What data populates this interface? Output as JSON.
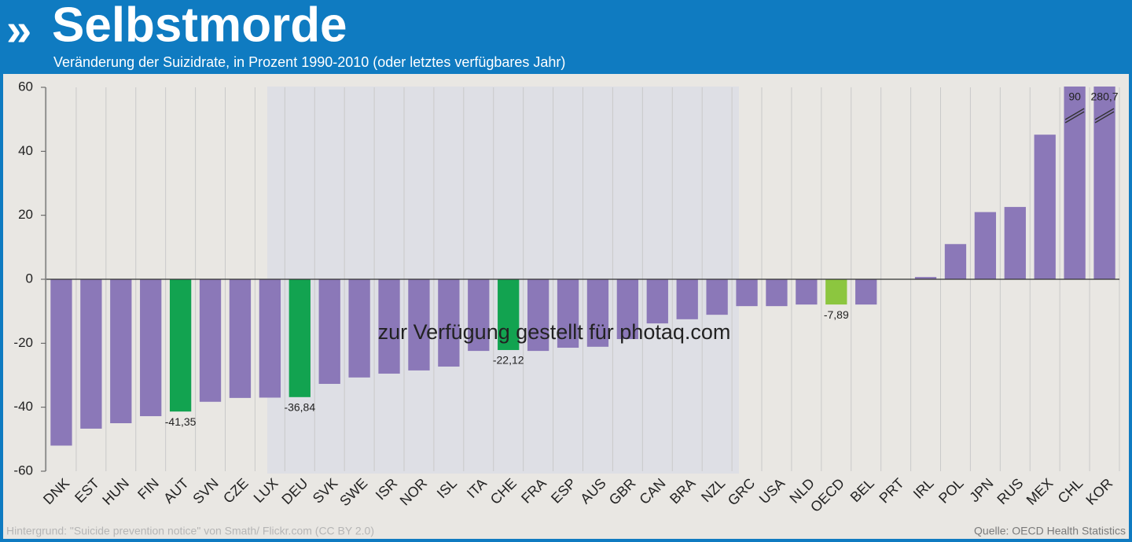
{
  "chart_data": {
    "type": "bar",
    "title": "Selbstmorde",
    "subtitle": "Veränderung der Suizidrate, in Prozent 1990-2010 (oder letztes verfügbares Jahr)",
    "watermark": "zur Verfügung gestellt für photaq.com",
    "footnote_left": "Hintergrund: \"Suicide prevention notice\" von Smath/ Flickr.com (CC BY 2.0)",
    "footnote_right": "Quelle: OECD Health Statistics",
    "categories": [
      "DNK",
      "EST",
      "HUN",
      "FIN",
      "AUT",
      "SVN",
      "CZE",
      "LUX",
      "DEU",
      "SVK",
      "SWE",
      "ISR",
      "NOR",
      "ISL",
      "ITA",
      "CHE",
      "FRA",
      "ESP",
      "AUS",
      "GBR",
      "CAN",
      "BRA",
      "NZL",
      "GRC",
      "USA",
      "NLD",
      "OECD",
      "BEL",
      "PRT",
      "IRL",
      "POL",
      "JPN",
      "RUS",
      "MEX",
      "CHL",
      "KOR"
    ],
    "values": [
      -52,
      -46.7,
      -45,
      -42.8,
      -41.35,
      -38.3,
      -37.1,
      -37,
      -36.84,
      -32.7,
      -30.7,
      -29.5,
      -28.5,
      -27.3,
      -22.4,
      -22.12,
      -22.4,
      -21.4,
      -21.1,
      -18.7,
      -13.8,
      -12.5,
      -11.1,
      -8.4,
      -8.4,
      -7.9,
      -7.89,
      -7.9,
      null,
      0.7,
      11,
      21,
      22.6,
      45.2,
      90,
      280.7
    ],
    "value_labels": [
      null,
      null,
      null,
      null,
      "-41,35",
      null,
      null,
      null,
      "-36,84",
      null,
      null,
      null,
      null,
      null,
      null,
      "-22,12",
      null,
      null,
      null,
      null,
      null,
      null,
      null,
      null,
      null,
      null,
      "-7,89",
      null,
      null,
      null,
      null,
      null,
      null,
      null,
      "90",
      "280,7"
    ],
    "colors": [
      "#8b78b8",
      "#8b78b8",
      "#8b78b8",
      "#8b78b8",
      "#12a350",
      "#8b78b8",
      "#8b78b8",
      "#8b78b8",
      "#12a350",
      "#8b78b8",
      "#8b78b8",
      "#8b78b8",
      "#8b78b8",
      "#8b78b8",
      "#8b78b8",
      "#12a350",
      "#8b78b8",
      "#8b78b8",
      "#8b78b8",
      "#8b78b8",
      "#8b78b8",
      "#8b78b8",
      "#8b78b8",
      "#8b78b8",
      "#8b78b8",
      "#8b78b8",
      "#8cc63f",
      "#8b78b8",
      "#8b78b8",
      "#8b78b8",
      "#8b78b8",
      "#8b78b8",
      "#8b78b8",
      "#8b78b8",
      "#8b78b8",
      "#8b78b8"
    ],
    "ylim": [
      -60,
      60
    ],
    "yticks": [
      -60,
      -40,
      -20,
      0,
      20,
      40,
      60
    ],
    "grid": true
  }
}
